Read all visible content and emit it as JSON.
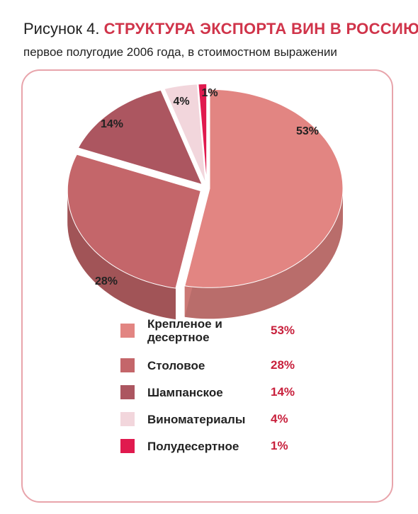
{
  "title": {
    "lead": "Рисунок 4.",
    "main": "СТРУКТУРА ЭКСПОРТА ВИН В РОССИЮ,"
  },
  "subtitle": "первое полугодие 2006 года, в стоимостном выражении",
  "chart_data": {
    "type": "pie",
    "categories": [
      "Крепленое и десертное",
      "Столовое",
      "Шампанское",
      "Виноматериалы",
      "Полудесертное"
    ],
    "values": [
      53,
      28,
      14,
      4,
      1
    ],
    "value_labels": [
      "53%",
      "28%",
      "14%",
      "4%",
      "1%"
    ],
    "colors": [
      "#e28582",
      "#c4666a",
      "#ac5660",
      "#f2d6dc",
      "#e01a4e"
    ],
    "legend_placement": "bottom"
  },
  "legend": [
    {
      "label": "Крепленое и десертное",
      "value": "53%",
      "color": "#e28582"
    },
    {
      "label": "Столовое",
      "value": "28%",
      "color": "#c4666a"
    },
    {
      "label": "Шампанское",
      "value": "14%",
      "color": "#ac5660"
    },
    {
      "label": "Виноматериалы",
      "value": "4%",
      "color": "#f2d6dc"
    },
    {
      "label": "Полудесертное",
      "value": "1%",
      "color": "#e01a4e"
    }
  ]
}
